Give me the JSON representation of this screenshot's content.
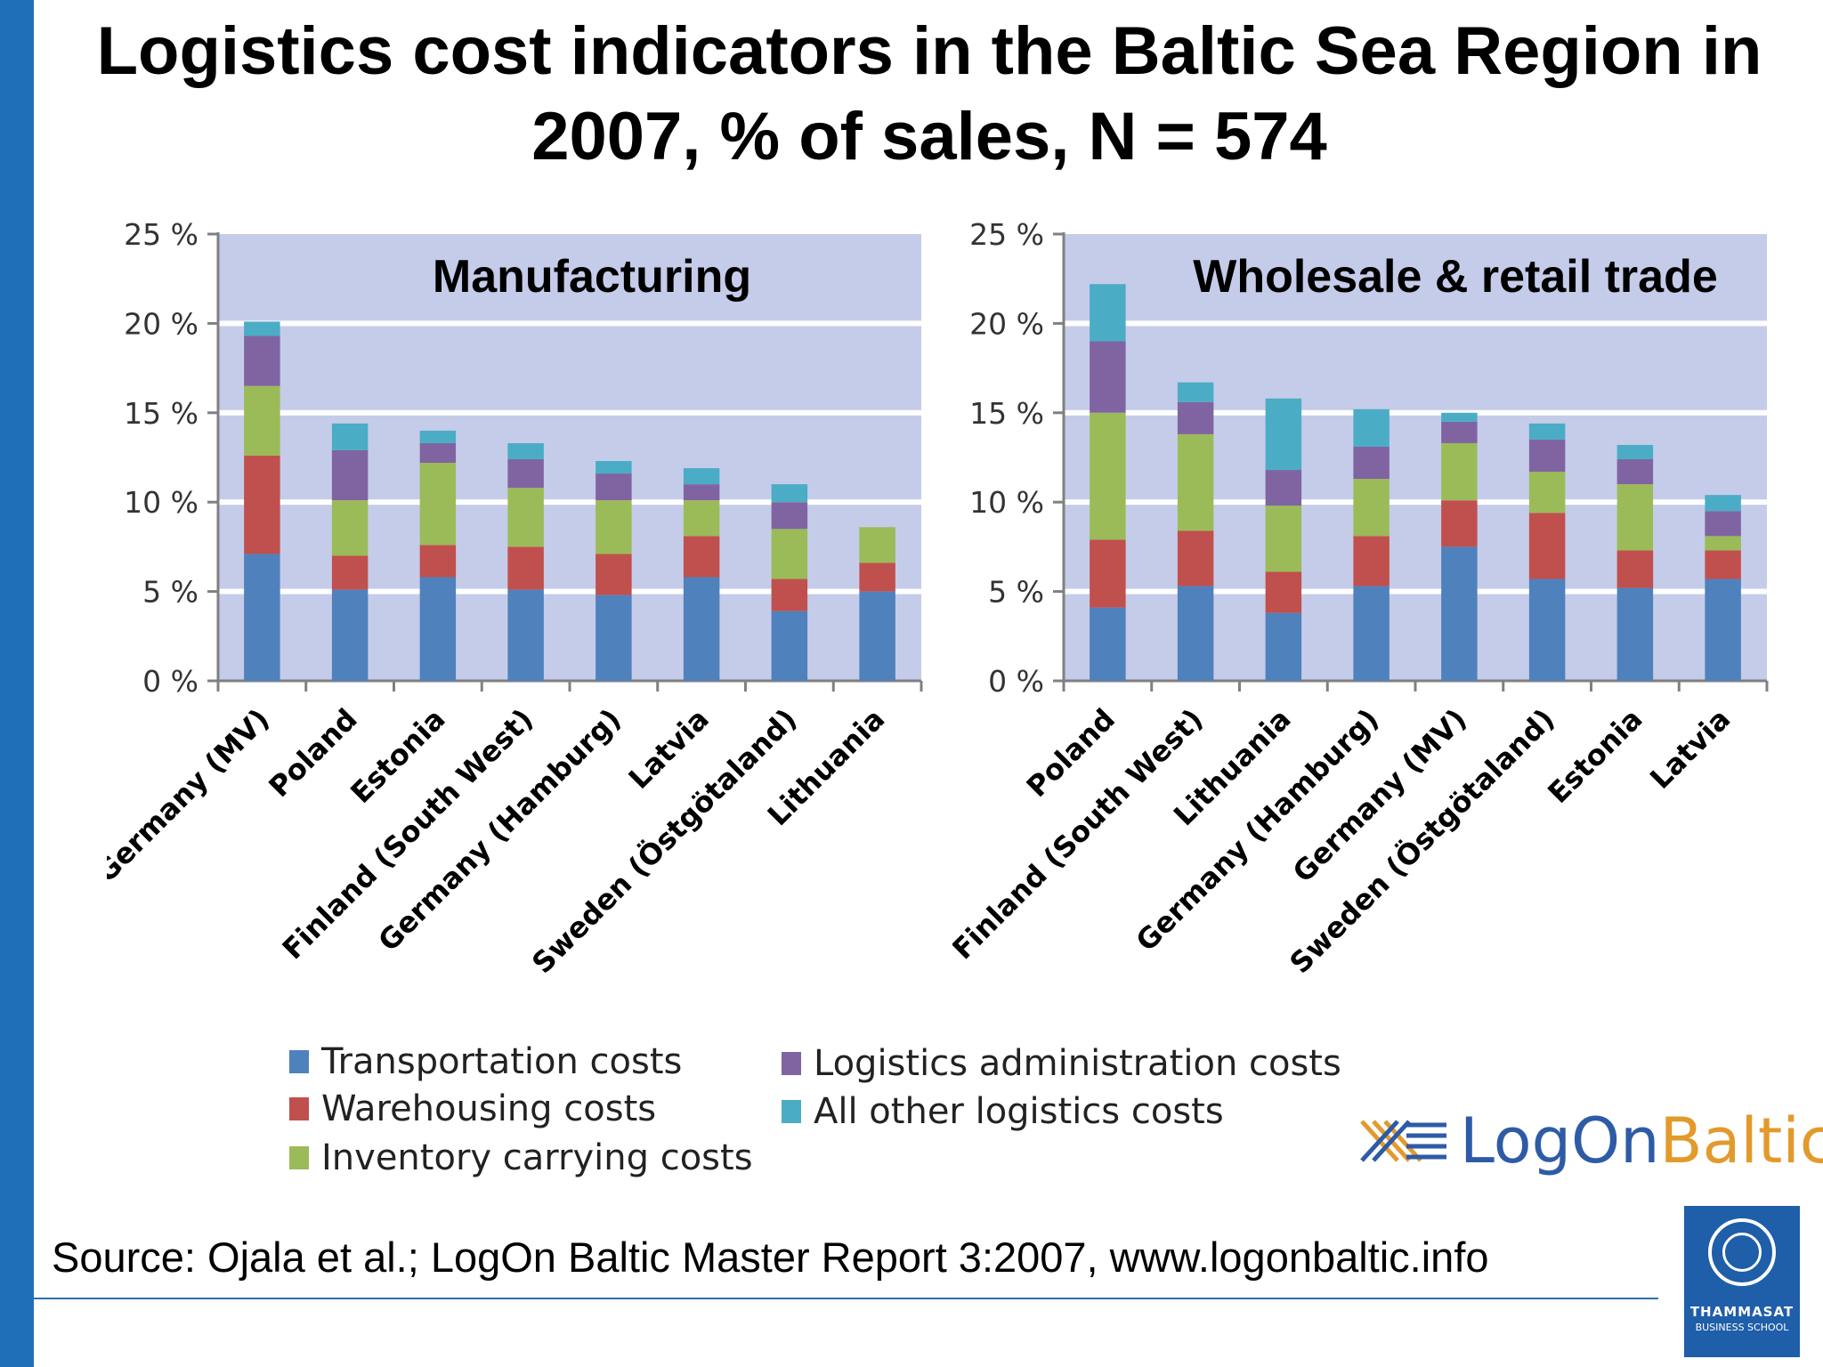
{
  "title": "Logistics cost indicators in the Baltic Sea Region in 2007, % of sales, N = 574",
  "source": "Source: Ojala et al.; LogOn Baltic Master Report 3:2007, www.logonbaltic.info",
  "brand": {
    "part1": "LogOn",
    "part2": "Baltic"
  },
  "school": {
    "name": "THAMMASAT",
    "sub": "BUSINESS SCHOOL"
  },
  "legend": [
    {
      "label": "Transportation costs",
      "color": "#4f81bd"
    },
    {
      "label": "Warehousing costs",
      "color": "#c0504d"
    },
    {
      "label": "Inventory carrying costs",
      "color": "#9bbb59"
    },
    {
      "label": "Logistics administration costs",
      "color": "#8064a2"
    },
    {
      "label": "All other logistics costs",
      "color": "#4bacc6"
    }
  ],
  "chart_data": [
    {
      "type": "bar",
      "stacked": true,
      "title": "Manufacturing",
      "ylim": [
        0,
        25
      ],
      "yticks": [
        "0 %",
        "5 %",
        "10 %",
        "15 %",
        "20 %",
        "25 %"
      ],
      "categories": [
        "Germany (MV)",
        "Poland",
        "Estonia",
        "Finland (South West)",
        "Germany (Hamburg)",
        "Latvia",
        "Sweden (Östgötaland)",
        "Lithuania"
      ],
      "series": [
        {
          "name": "Transportation costs",
          "color": "#4f81bd",
          "values": [
            7.1,
            5.1,
            5.8,
            5.1,
            4.8,
            5.8,
            3.9,
            5.0
          ]
        },
        {
          "name": "Warehousing costs",
          "color": "#c0504d",
          "values": [
            5.5,
            1.9,
            1.8,
            2.4,
            2.3,
            2.3,
            1.8,
            1.6
          ]
        },
        {
          "name": "Inventory carrying costs",
          "color": "#9bbb59",
          "values": [
            3.9,
            3.1,
            4.6,
            3.3,
            3.0,
            2.0,
            2.8,
            2.0
          ]
        },
        {
          "name": "Logistics administration costs",
          "color": "#8064a2",
          "values": [
            2.8,
            2.8,
            1.1,
            1.6,
            1.5,
            0.9,
            1.5,
            0
          ]
        },
        {
          "name": "All other logistics costs",
          "color": "#4bacc6",
          "values": [
            0.8,
            1.5,
            0.7,
            0.9,
            0.7,
            0.9,
            1.0,
            0
          ]
        }
      ]
    },
    {
      "type": "bar",
      "stacked": true,
      "title": "Wholesale & retail trade",
      "ylim": [
        0,
        25
      ],
      "yticks": [
        "0 %",
        "5 %",
        "10 %",
        "15 %",
        "20 %",
        "25 %"
      ],
      "categories": [
        "Poland",
        "Finland (South West)",
        "Lithuania",
        "Germany (Hamburg)",
        "Germany (MV)",
        "Sweden (Östgötaland)",
        "Estonia",
        "Latvia"
      ],
      "series": [
        {
          "name": "Transportation costs",
          "color": "#4f81bd",
          "values": [
            4.1,
            5.3,
            3.8,
            5.3,
            7.5,
            5.7,
            5.2,
            5.7
          ]
        },
        {
          "name": "Warehousing costs",
          "color": "#c0504d",
          "values": [
            3.8,
            3.1,
            2.3,
            2.8,
            2.6,
            3.7,
            2.1,
            1.6
          ]
        },
        {
          "name": "Inventory carrying costs",
          "color": "#9bbb59",
          "values": [
            7.1,
            5.4,
            3.7,
            3.2,
            3.2,
            2.3,
            3.7,
            0.8
          ]
        },
        {
          "name": "Logistics administration costs",
          "color": "#8064a2",
          "values": [
            4.0,
            1.8,
            2.0,
            1.8,
            1.2,
            1.8,
            1.4,
            1.4
          ]
        },
        {
          "name": "All other logistics costs",
          "color": "#4bacc6",
          "values": [
            3.2,
            1.1,
            4.0,
            2.1,
            0.5,
            0.9,
            0.8,
            0.9
          ]
        }
      ]
    }
  ]
}
